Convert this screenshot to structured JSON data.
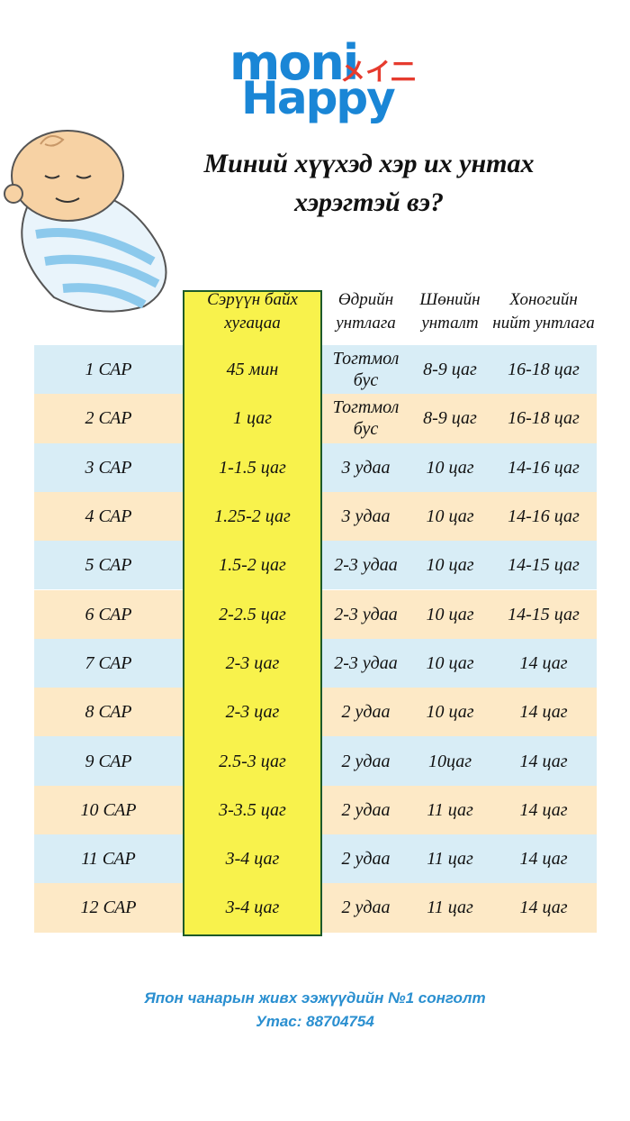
{
  "logo": {
    "brand": "moni",
    "katakana": "メイ二",
    "sub": "Happy"
  },
  "title": {
    "line1": "Миний хүүхэд хэр их унтах",
    "line2": "хэрэгтэй вэ?"
  },
  "table": {
    "headers": [
      "Сэрүүн байх хугацаа",
      "Өдрийн унтлага",
      "Шөнийн унталт",
      "Хоногийн нийт унтлага"
    ],
    "rows": [
      [
        "1 САР",
        "45 мин",
        "Тогтмол бус",
        "8-9 цаг",
        "16-18 цаг"
      ],
      [
        "2 САР",
        "1 цаг",
        "Тогтмол бус",
        "8-9 цаг",
        "16-18 цаг"
      ],
      [
        "3 САР",
        "1-1.5 цаг",
        "3 удаа",
        "10 цаг",
        "14-16 цаг"
      ],
      [
        "4 САР",
        "1.25-2 цаг",
        "3 удаа",
        "10 цаг",
        "14-16 цаг"
      ],
      [
        "5 САР",
        "1.5-2 цаг",
        "2-3 удаа",
        "10 цаг",
        "14-15 цаг"
      ],
      [
        "6 САР",
        "2-2.5 цаг",
        "2-3 удаа",
        "10 цаг",
        "14-15 цаг"
      ],
      [
        "7 САР",
        "2-3 цаг",
        "2-3 удаа",
        "10 цаг",
        "14 цаг"
      ],
      [
        "8 САР",
        "2-3 цаг",
        "2 удаа",
        "10 цаг",
        "14 цаг"
      ],
      [
        "9 САР",
        "2.5-3 цаг",
        "2 удаа",
        "10цаг",
        "14 цаг"
      ],
      [
        "10 САР",
        "3-3.5 цаг",
        "2 удаа",
        "11 цаг",
        "14 цаг"
      ],
      [
        "11 САР",
        "3-4 цаг",
        "2 удаа",
        "11 цаг",
        "14 цаг"
      ],
      [
        "12 САР",
        "3-4 цаг",
        "2 удаа",
        "11 цаг",
        "14 цаг"
      ]
    ]
  },
  "footer": {
    "slogan": "Япон чанарын живх ээжүүдийн №1 сонголт",
    "phone": "Утас: 88704754"
  }
}
